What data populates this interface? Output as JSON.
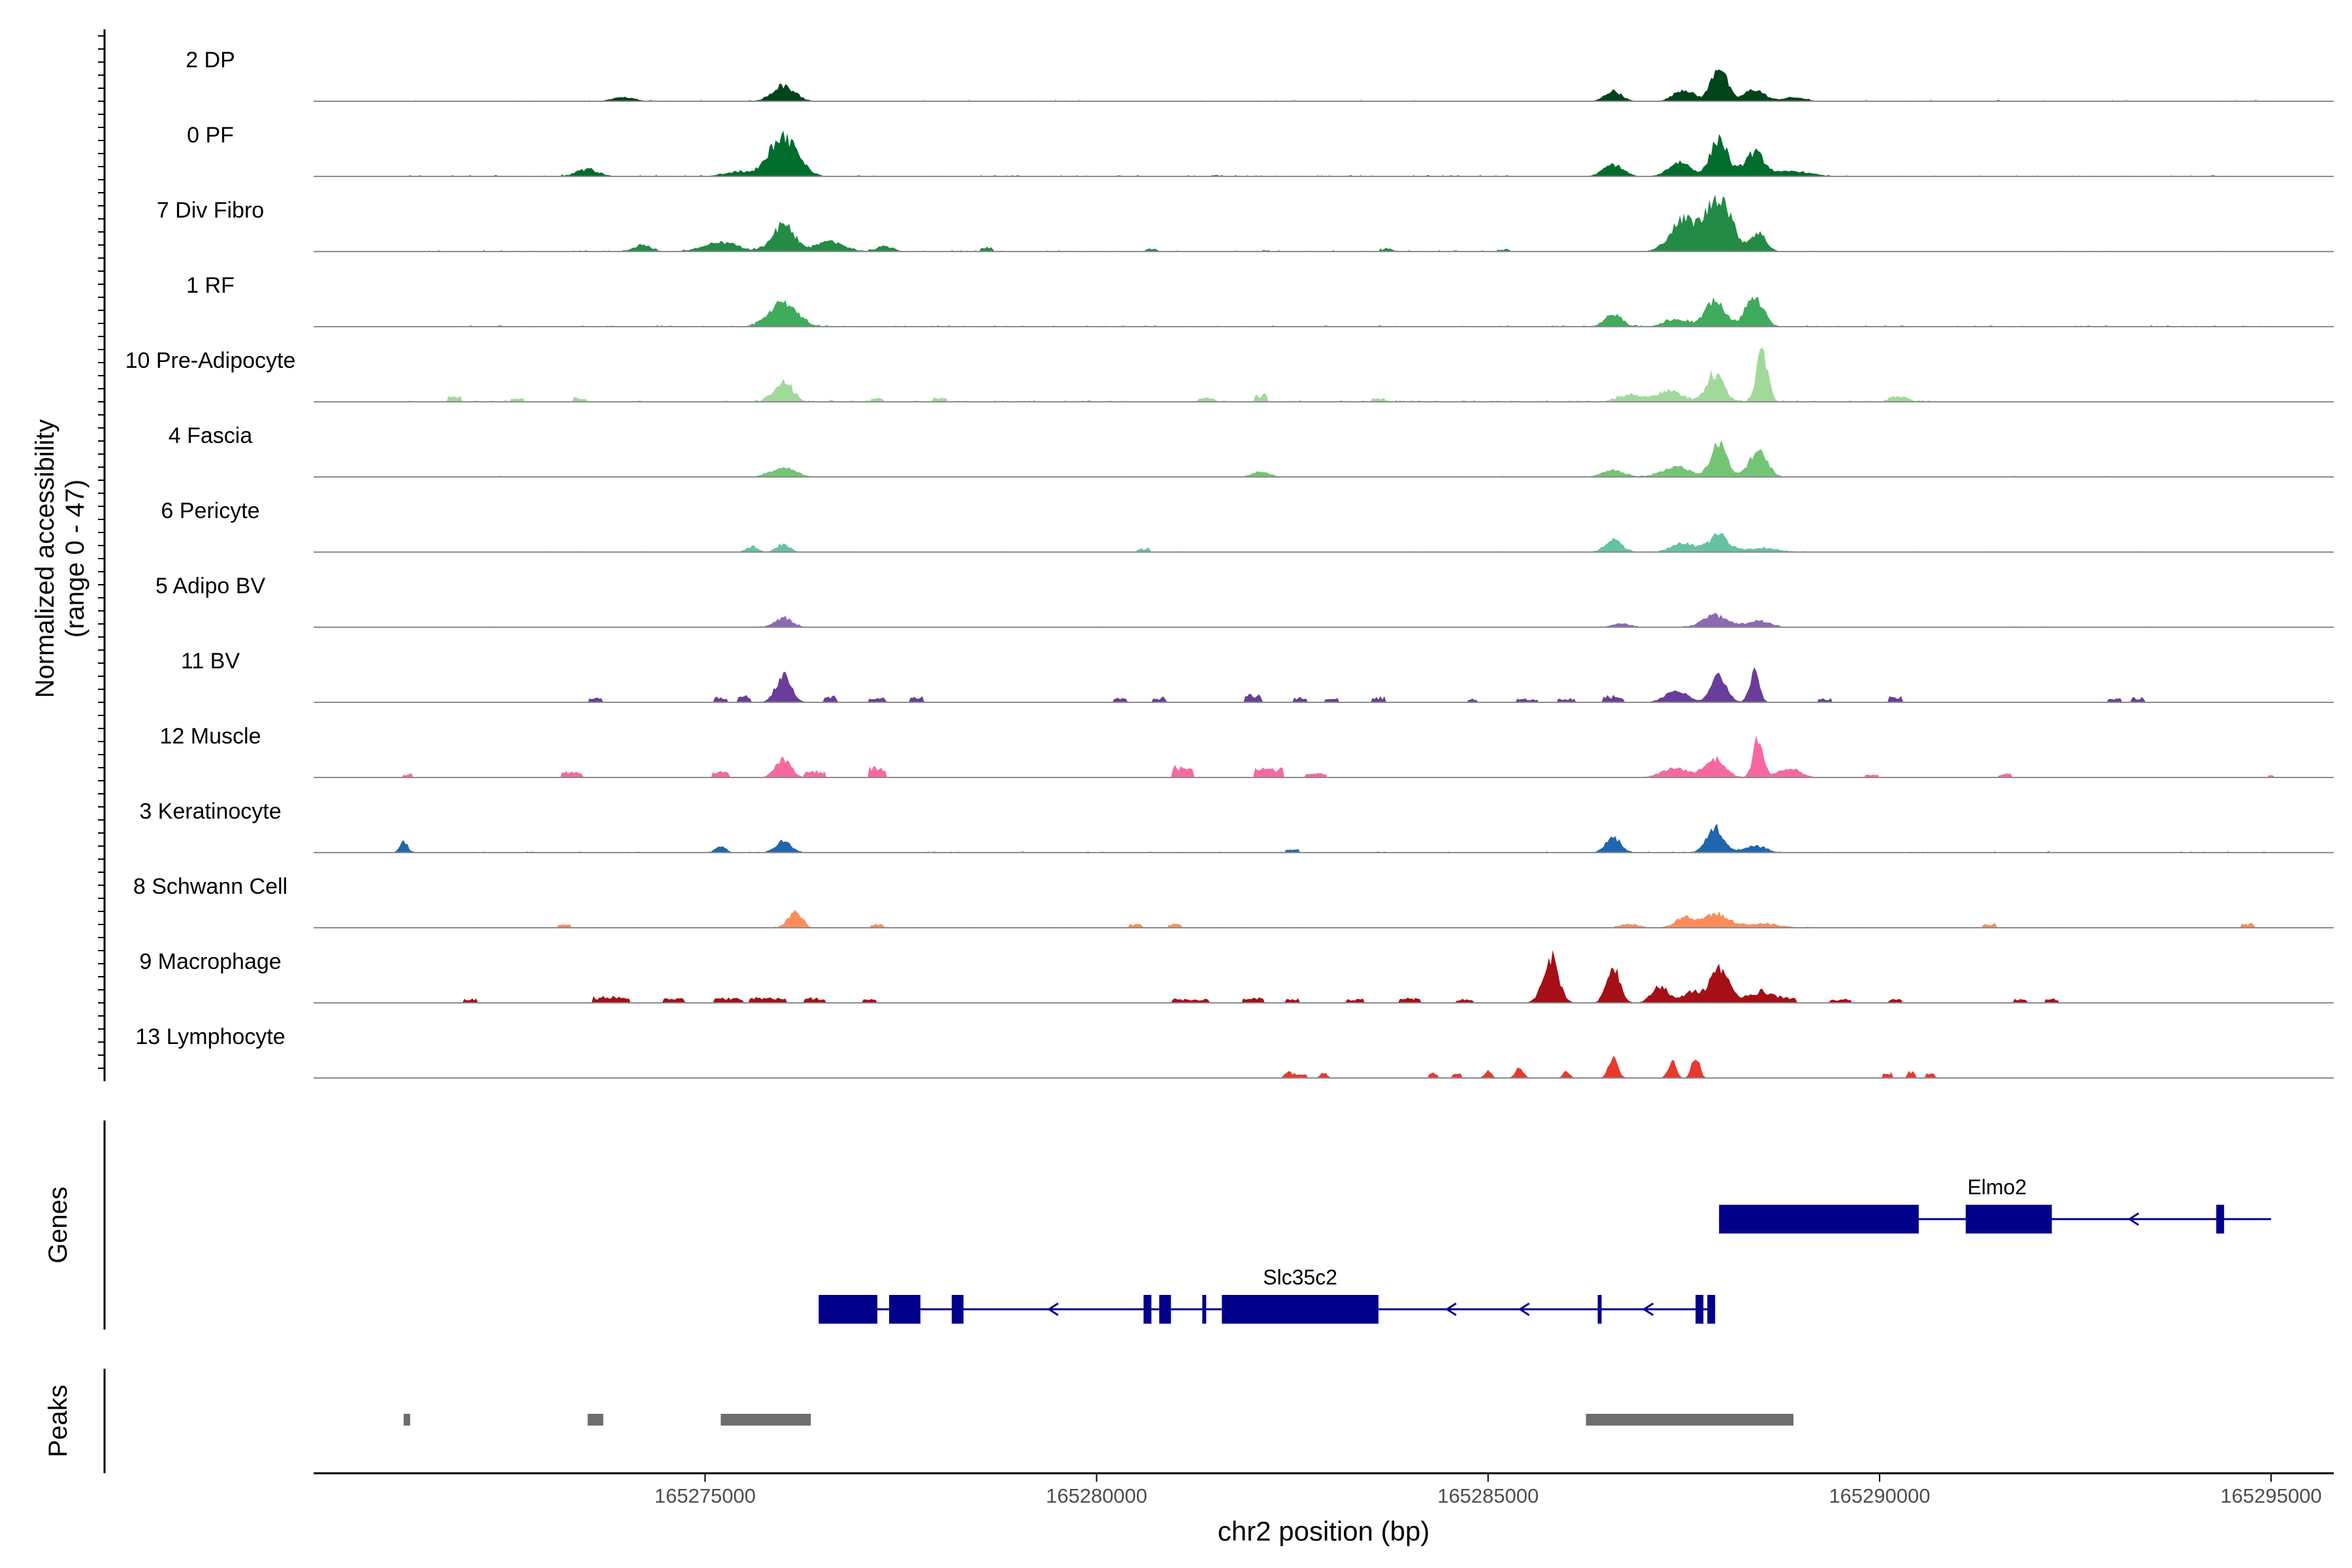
{
  "chart_data": {
    "type": "area",
    "title": "",
    "ylabel_line1": "Normalized accessibility",
    "ylabel_line2": "(range 0 - 47)",
    "ylim": [
      0,
      47
    ],
    "xlabel": "chr2 position (bp)",
    "chromosome": "chr2",
    "xlim": [
      165270000,
      165295800
    ],
    "x_ticks": [
      165275000,
      165280000,
      165285000,
      165290000,
      165295000
    ],
    "x_tick_labels": [
      "165275000",
      "165280000",
      "165285000",
      "165290000",
      "165295000"
    ],
    "tracks": [
      {
        "name": "2 DP",
        "color": "#00441b",
        "peaks": [
          [
            165276000,
            12,
            200
          ],
          [
            165287950,
            27,
            140
          ],
          [
            165287500,
            9,
            180
          ],
          [
            165288400,
            9,
            180
          ],
          [
            165286600,
            8,
            150
          ],
          [
            165273950,
            3,
            200
          ],
          [
            165288900,
            3,
            200
          ]
        ],
        "noise": [
          [
            165271200,
            165285000,
            0.8
          ],
          [
            165289000,
            165295000,
            0.8
          ]
        ]
      },
      {
        "name": "0 PF",
        "color": "#006d2c",
        "peaks": [
          [
            165276000,
            30,
            260
          ],
          [
            165287950,
            29,
            150
          ],
          [
            165288400,
            18,
            180
          ],
          [
            165287450,
            11,
            200
          ],
          [
            165286600,
            9,
            180
          ],
          [
            165273500,
            5,
            200
          ],
          [
            165275400,
            3,
            250
          ],
          [
            165288900,
            4,
            300
          ]
        ],
        "noise": [
          [
            165271200,
            165285500,
            1.0
          ],
          [
            165289200,
            165295000,
            0.8
          ]
        ]
      },
      {
        "name": "7 Div Fibro",
        "color": "#238b45",
        "peaks": [
          [
            165276000,
            20,
            200
          ],
          [
            165287950,
            42,
            220
          ],
          [
            165288450,
            14,
            140
          ],
          [
            165287500,
            24,
            240
          ],
          [
            165275200,
            7,
            300
          ],
          [
            165276600,
            8,
            240
          ],
          [
            165274200,
            5,
            150
          ],
          [
            165277300,
            4,
            150
          ]
        ],
        "noise": [
          [
            165271200,
            165285000,
            1.0
          ],
          [
            165289000,
            165295000,
            0.6
          ]
        ],
        "blips": [
          [
            165278600,
            3,
            80
          ],
          [
            165280700,
            2,
            90
          ],
          [
            165283700,
            2,
            90
          ],
          [
            165285200,
            2,
            80
          ]
        ]
      },
      {
        "name": "1 RF",
        "color": "#41ab5d",
        "peaks": [
          [
            165276000,
            18,
            250
          ],
          [
            165287900,
            20,
            180
          ],
          [
            165288400,
            22,
            160
          ],
          [
            165286600,
            9,
            150
          ],
          [
            165287400,
            6,
            200
          ]
        ],
        "noise": [
          [
            165271200,
            165295000,
            1.0
          ]
        ]
      },
      {
        "name": "10 Pre-Adipocyte",
        "color": "#a1d99b",
        "peaks": [
          [
            165276000,
            15,
            160
          ],
          [
            165287900,
            21,
            150
          ],
          [
            165288500,
            38,
            100
          ],
          [
            165287300,
            8,
            250
          ],
          [
            165286800,
            5,
            200
          ],
          [
            165290250,
            4,
            150
          ]
        ],
        "noise": [
          [
            165271200,
            165291000,
            1.4
          ]
        ],
        "blips": [
          [
            165271800,
            5,
            80
          ],
          [
            165272600,
            3,
            90
          ],
          [
            165273400,
            3,
            90
          ],
          [
            165277200,
            3,
            90
          ],
          [
            165278000,
            3,
            90
          ],
          [
            165281400,
            3,
            120
          ],
          [
            165282100,
            5,
            90
          ],
          [
            165283600,
            3,
            90
          ]
        ]
      },
      {
        "name": "4 Fascia",
        "color": "#74c476",
        "peaks": [
          [
            165276000,
            7,
            220
          ],
          [
            165287950,
            25,
            140
          ],
          [
            165288450,
            20,
            160
          ],
          [
            165287400,
            8,
            250
          ],
          [
            165286600,
            5,
            200
          ],
          [
            165282100,
            4,
            150
          ]
        ],
        "noise": [
          [
            165271200,
            165295000,
            0.7
          ]
        ]
      },
      {
        "name": "6 Pericyte",
        "color": "#66c2a4",
        "peaks": [
          [
            165276000,
            6,
            120
          ],
          [
            165287950,
            13,
            170
          ],
          [
            165287500,
            7,
            220
          ],
          [
            165286600,
            9,
            150
          ],
          [
            165288500,
            3,
            300
          ],
          [
            165275600,
            4,
            100
          ]
        ],
        "noise": [
          [
            165271200,
            165295000,
            0.6
          ]
        ],
        "blips": [
          [
            165280600,
            3,
            80
          ]
        ]
      },
      {
        "name": "5 Adipo BV",
        "color": "#8c6bb1",
        "peaks": [
          [
            165276000,
            7,
            160
          ],
          [
            165287900,
            9,
            220
          ],
          [
            165288450,
            5,
            200
          ],
          [
            165286700,
            3,
            150
          ]
        ],
        "noise": [
          [
            165271200,
            165295000,
            0.6
          ]
        ]
      },
      {
        "name": "11 BV",
        "color": "#6a3d9a",
        "peaks": [
          [
            165276000,
            20,
            140
          ],
          [
            165287950,
            20,
            140
          ],
          [
            165288400,
            22,
            90
          ],
          [
            165287400,
            9,
            200
          ]
        ],
        "noise": [],
        "blips": [
          [
            165273600,
            4,
            90
          ],
          [
            165275200,
            4,
            90
          ],
          [
            165275500,
            5,
            100
          ],
          [
            165276600,
            5,
            90
          ],
          [
            165277200,
            4,
            120
          ],
          [
            165277700,
            4,
            90
          ],
          [
            165280300,
            4,
            90
          ],
          [
            165280800,
            4,
            90
          ],
          [
            165282000,
            7,
            120
          ],
          [
            165282600,
            4,
            100
          ],
          [
            165283000,
            3,
            80
          ],
          [
            165283600,
            4,
            90
          ],
          [
            165284800,
            3,
            70
          ],
          [
            165285500,
            3,
            150
          ],
          [
            165286000,
            3,
            120
          ],
          [
            165286600,
            5,
            150
          ],
          [
            165289300,
            3,
            90
          ],
          [
            165290200,
            5,
            90
          ],
          [
            165293000,
            3,
            90
          ],
          [
            165293300,
            4,
            100
          ]
        ]
      },
      {
        "name": "12 Muscle",
        "color": "#f768a1",
        "peaks": [
          [
            165276000,
            14,
            140
          ],
          [
            165287900,
            14,
            180
          ],
          [
            165288450,
            30,
            90
          ],
          [
            165287400,
            7,
            250
          ],
          [
            165288850,
            7,
            200
          ]
        ],
        "noise": [],
        "blips": [
          [
            165271200,
            3,
            70
          ],
          [
            165273300,
            4,
            150
          ],
          [
            165275200,
            5,
            120
          ],
          [
            165276400,
            5,
            150
          ],
          [
            165277200,
            8,
            120
          ],
          [
            165281100,
            9,
            130
          ],
          [
            165282200,
            8,
            200
          ],
          [
            165282800,
            4,
            150
          ],
          [
            165289900,
            3,
            90
          ],
          [
            165291600,
            3,
            90
          ],
          [
            165295000,
            2,
            50
          ]
        ]
      },
      {
        "name": "3 Keratinocyte",
        "color": "#2166ac",
        "peaks": [
          [
            165276000,
            9,
            140
          ],
          [
            165287900,
            19,
            150
          ],
          [
            165286600,
            11,
            140
          ],
          [
            165271150,
            9,
            70
          ],
          [
            165275200,
            5,
            90
          ],
          [
            165288400,
            5,
            200
          ]
        ],
        "noise": [
          [
            165271200,
            165295000,
            0.8
          ]
        ],
        "blips": [
          [
            165282500,
            3,
            90
          ]
        ]
      },
      {
        "name": "8 Schwann Cell",
        "color": "#fc8d59",
        "peaks": [
          [
            165276150,
            13,
            120
          ],
          [
            165287900,
            11,
            220
          ],
          [
            165287500,
            8,
            150
          ],
          [
            165286800,
            3,
            150
          ],
          [
            165288500,
            3,
            300
          ]
        ],
        "noise": [
          [
            165271200,
            165295000,
            0.6
          ]
        ],
        "blips": [
          [
            165273200,
            3,
            90
          ],
          [
            165277200,
            3,
            90
          ],
          [
            165280500,
            3,
            90
          ],
          [
            165281000,
            3,
            90
          ],
          [
            165291400,
            3,
            90
          ],
          [
            165294700,
            3,
            90
          ]
        ]
      },
      {
        "name": "9 Macrophage",
        "color": "#a50f15",
        "peaks": [
          [
            165285800,
            35,
            140
          ],
          [
            165286600,
            28,
            120
          ],
          [
            165287950,
            28,
            160
          ],
          [
            165287200,
            13,
            150
          ],
          [
            165287600,
            9,
            150
          ],
          [
            165288400,
            7,
            200
          ]
        ],
        "noise": [],
        "blips": [
          [
            165272000,
            3,
            100
          ],
          [
            165273800,
            5,
            250
          ],
          [
            165274600,
            4,
            150
          ],
          [
            165275300,
            4,
            200
          ],
          [
            165275800,
            4,
            250
          ],
          [
            165276400,
            4,
            150
          ],
          [
            165277100,
            3,
            100
          ],
          [
            165281200,
            3,
            250
          ],
          [
            165282000,
            4,
            150
          ],
          [
            165282500,
            3,
            100
          ],
          [
            165283300,
            3,
            120
          ],
          [
            165284000,
            4,
            150
          ],
          [
            165284700,
            3,
            120
          ],
          [
            165288700,
            5,
            250
          ],
          [
            165289500,
            3,
            150
          ],
          [
            165290200,
            3,
            100
          ],
          [
            165291800,
            3,
            100
          ],
          [
            165292200,
            3,
            80
          ]
        ]
      },
      {
        "name": "13 Lymphocyte",
        "color": "#e7392e",
        "peaks": [
          [
            165286600,
            17,
            80
          ],
          [
            165287350,
            13,
            70
          ],
          [
            165287650,
            17,
            70
          ],
          [
            165285400,
            8,
            70
          ],
          [
            165285000,
            6,
            60
          ],
          [
            165282450,
            5,
            60
          ],
          [
            165282900,
            4,
            60
          ],
          [
            165286000,
            5,
            60
          ]
        ],
        "noise": [],
        "blips": [
          [
            165282600,
            3,
            80
          ],
          [
            165284300,
            4,
            60
          ],
          [
            165284600,
            4,
            60
          ],
          [
            165290100,
            4,
            60
          ],
          [
            165290400,
            5,
            60
          ],
          [
            165290650,
            4,
            60
          ]
        ]
      }
    ],
    "genes_label": "Genes",
    "peaks_label": "Peaks",
    "genes": [
      {
        "name": "Elmo2",
        "start": 165287950,
        "end": 165295000,
        "strand": "-",
        "exons": [
          [
            165287950,
            165290500
          ],
          [
            165291100,
            165292200
          ],
          [
            165294300,
            165294400
          ]
        ]
      },
      {
        "name": "Slc35c2",
        "start": 165276450,
        "end": 165287900,
        "strand": "-",
        "exons": [
          [
            165276450,
            165277200
          ],
          [
            165277350,
            165277750
          ],
          [
            165278150,
            165278300
          ],
          [
            165280600,
            165280700
          ],
          [
            165280800,
            165280950
          ],
          [
            165281350,
            165281400
          ],
          [
            165281600,
            165283600
          ],
          [
            165286400,
            165286450
          ],
          [
            165287650,
            165287750
          ],
          [
            165287800,
            165287900
          ]
        ]
      }
    ],
    "peaks": [
      [
        165271150,
        165271230
      ],
      [
        165273500,
        165273700
      ],
      [
        165275200,
        165276350
      ],
      [
        165286250,
        165288900
      ]
    ]
  }
}
